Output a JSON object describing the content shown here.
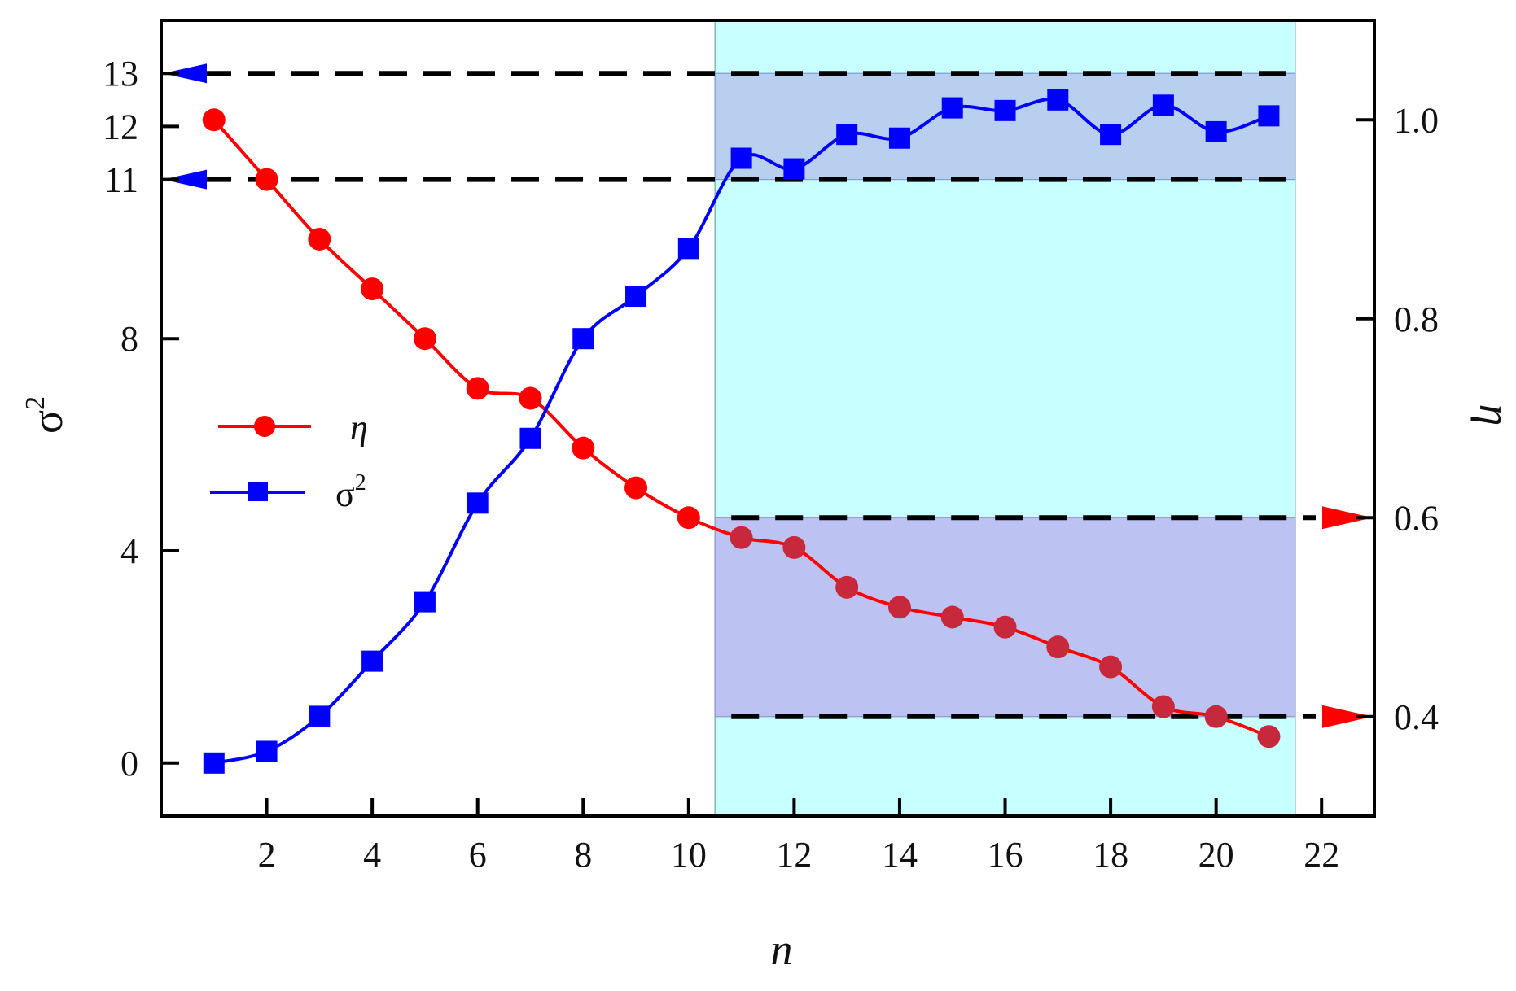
{
  "chart_data": {
    "type": "line",
    "xlabel": "n",
    "ylabel_left": "σ",
    "ylabel_left_sup": "2",
    "ylabel_right": "η",
    "xlim": [
      0,
      23
    ],
    "ylim_left": [
      -1,
      14
    ],
    "ylim_right": [
      0.3,
      1.1
    ],
    "x_ticks": [
      2,
      4,
      6,
      8,
      10,
      12,
      14,
      16,
      18,
      20,
      22
    ],
    "y_left_ticks": [
      0,
      4,
      8,
      11,
      12,
      13
    ],
    "y_right_ticks": [
      0.4,
      0.6,
      0.8,
      1.0
    ],
    "y_right_tick_labels": [
      "0.4",
      "0.6",
      "0.8",
      "1.0"
    ],
    "grid": false,
    "legend_position": "center-left",
    "x": [
      1,
      2,
      3,
      4,
      5,
      6,
      7,
      8,
      9,
      10,
      11,
      12,
      13,
      14,
      15,
      16,
      17,
      18,
      19,
      20,
      21
    ],
    "series": [
      {
        "name": "η",
        "axis": "right",
        "marker": "circle",
        "color": "#ff0000",
        "values": [
          1.0,
          0.94,
          0.88,
          0.83,
          0.78,
          0.73,
          0.72,
          0.67,
          0.63,
          0.6,
          0.58,
          0.57,
          0.53,
          0.51,
          0.5,
          0.49,
          0.47,
          0.45,
          0.41,
          0.4,
          0.38
        ]
      },
      {
        "name": "σ",
        "name_sup": "2",
        "axis": "left",
        "marker": "square",
        "color": "#0000ff",
        "values": [
          0.0,
          0.22,
          0.88,
          1.92,
          3.04,
          4.9,
          6.12,
          8.0,
          8.8,
          9.7,
          11.4,
          11.2,
          11.85,
          11.78,
          12.35,
          12.3,
          12.5,
          11.85,
          12.4,
          11.9,
          12.2
        ]
      }
    ],
    "shaded_region_x": [
      10.5,
      21.5
    ],
    "band_left": [
      11,
      13
    ],
    "band_right": [
      0.4,
      0.6
    ],
    "colors": {
      "region": "#c8ffff",
      "band_left": "#b8cff0",
      "band_right": "#bcc3f2",
      "dash": "#000000",
      "eta": "#ff0000",
      "sigma": "#0000ff"
    }
  }
}
